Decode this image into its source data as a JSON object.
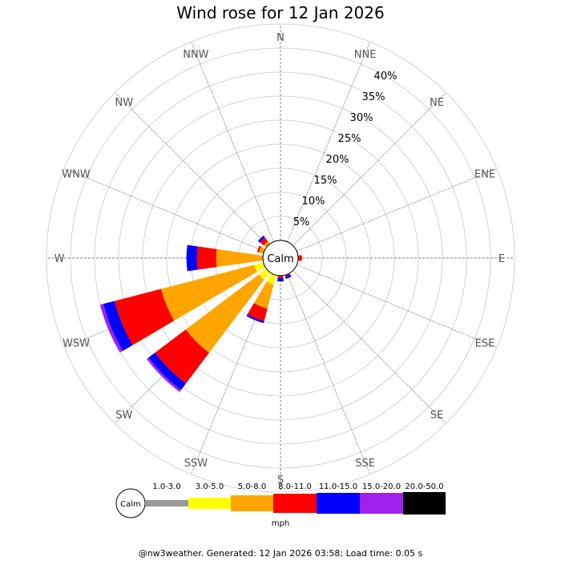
{
  "title": "Wind rose for 12 Jan 2026",
  "footer": "@nw3weather. Generated: 12 Jan 2026 03:58; Load time: 0.05 s",
  "chart_data": {
    "type": "wind-rose",
    "title": "Wind rose for 12 Jan 2026",
    "directions": [
      "N",
      "NNE",
      "NE",
      "ENE",
      "E",
      "ESE",
      "SE",
      "SSE",
      "S",
      "SSW",
      "SW",
      "WSW",
      "W",
      "WNW",
      "NW",
      "NNW"
    ],
    "radial_ticks": [
      "5%",
      "10%",
      "15%",
      "20%",
      "25%",
      "30%",
      "35%",
      "40%"
    ],
    "radial_max": 40,
    "center_label": "Calm",
    "units": "mph",
    "speed_bins": [
      {
        "label": "1.0-3.0",
        "color": "#999999"
      },
      {
        "label": "3.0-5.0",
        "color": "#ffff00"
      },
      {
        "label": "5.0-8.0",
        "color": "#ffa500"
      },
      {
        "label": "8.0-11.0",
        "color": "#ff0000"
      },
      {
        "label": "11.0-15.0",
        "color": "#0000ff"
      },
      {
        "label": "15.0-20.0",
        "color": "#a020f0"
      },
      {
        "label": "20.0-50.0",
        "color": "#000000"
      }
    ],
    "series": [
      {
        "direction": "E",
        "values": [
          0,
          0,
          0,
          0.8,
          0,
          0,
          0
        ]
      },
      {
        "direction": "SSE",
        "values": [
          0,
          0,
          0,
          0.3,
          0.5,
          0,
          0
        ]
      },
      {
        "direction": "S",
        "values": [
          0,
          0,
          0,
          0.5,
          0.7,
          0,
          0
        ]
      },
      {
        "direction": "SSW",
        "values": [
          0,
          2.0,
          5.2,
          2.7,
          0.4,
          0,
          0
        ]
      },
      {
        "direction": "SW",
        "values": [
          0,
          2.0,
          19.0,
          8.0,
          1.7,
          0.5,
          0
        ]
      },
      {
        "direction": "WSW",
        "values": [
          0,
          2.0,
          20.0,
          10.0,
          2.4,
          0.7,
          0
        ]
      },
      {
        "direction": "W",
        "values": [
          0,
          0,
          9.7,
          4.0,
          2.2,
          0,
          0
        ]
      },
      {
        "direction": "WNW",
        "values": [
          0,
          0,
          1.0,
          0.4,
          0,
          0,
          0
        ]
      },
      {
        "direction": "NW",
        "values": [
          0,
          0,
          0.7,
          1.0,
          0.5,
          0,
          0
        ]
      }
    ]
  }
}
